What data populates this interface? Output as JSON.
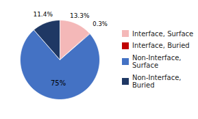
{
  "chart_data": {
    "type": "pie",
    "categories": [
      "Interface, Surface",
      "Interface, Buried",
      "Non-Interface,\nSurface",
      "Non-Interface,\nBuried"
    ],
    "values": [
      13.3,
      0.3,
      75.0,
      11.4
    ],
    "value_labels": [
      "13.3%",
      "0.3%",
      "75%",
      "11.4%"
    ],
    "colors": [
      "#f4b8b8",
      "#c00000",
      "#4472c4",
      "#1f3864"
    ],
    "data_labels": true,
    "legend": "right"
  }
}
